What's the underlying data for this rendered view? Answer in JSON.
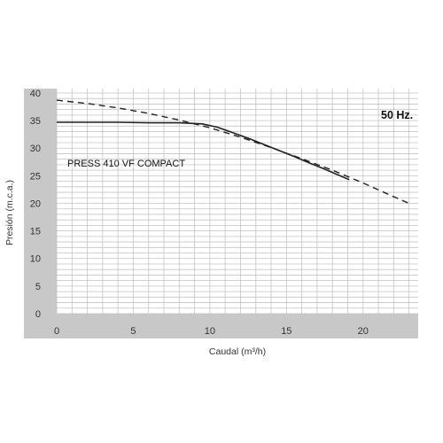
{
  "chart_data": {
    "type": "line",
    "title": "",
    "xlabel": "Caudal (m³/h)",
    "ylabel": "Presión (m.c.a.)",
    "xlim": [
      0,
      23.6
    ],
    "ylim": [
      0,
      40.8
    ],
    "xticks": [
      0,
      5,
      10,
      15,
      20
    ],
    "yticks": [
      0,
      5,
      10,
      15,
      20,
      25,
      30,
      35,
      40
    ],
    "grid": true,
    "annotations": [
      {
        "text": "PRESS 410 VF COMPACT"
      },
      {
        "text": "50 Hz."
      }
    ],
    "series": [
      {
        "style": "solid",
        "x": [
          0,
          2,
          4,
          6,
          8,
          9.5,
          10.5,
          11.5,
          12.5,
          13.5,
          14.5,
          15.5,
          16.5,
          17.5,
          18.5,
          19.1
        ],
        "y": [
          34.7,
          34.7,
          34.7,
          34.6,
          34.6,
          34.4,
          33.8,
          32.8,
          31.8,
          30.7,
          29.6,
          28.5,
          27.3,
          26.2,
          25.0,
          24.3
        ]
      },
      {
        "style": "dashed",
        "x": [
          0,
          2,
          4,
          6,
          8,
          10,
          12,
          14,
          16,
          18,
          20,
          22,
          23
        ],
        "y": [
          38.7,
          38.1,
          37.3,
          36.3,
          35.1,
          33.7,
          32.0,
          30.1,
          28.1,
          26.0,
          23.7,
          21.2,
          20.0
        ]
      }
    ]
  },
  "colors": {
    "frame": "#c8c8c8",
    "plot_bg": "#ffffff",
    "grid": "#c4c4c4",
    "line": "#222222"
  }
}
